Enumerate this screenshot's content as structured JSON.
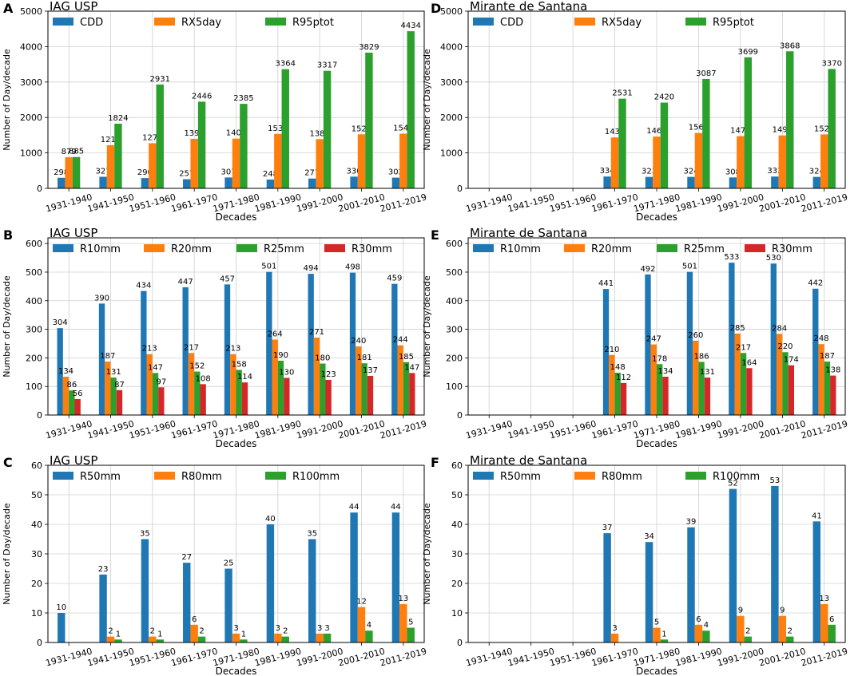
{
  "chart_data": [
    {
      "panel": "A",
      "title": "IAG USP",
      "type": "bar",
      "xlabel": "Decades",
      "ylabel": "Number of Day/decade",
      "ylim": [
        0,
        5000
      ],
      "yticks": [
        0,
        1000,
        2000,
        3000,
        4000,
        5000
      ],
      "categories": [
        "1931-1940",
        "1941-1950",
        "1951-1960",
        "1961-1970",
        "1971-1980",
        "1981-1990",
        "1991-2000",
        "2001-2010",
        "2011-2019"
      ],
      "series": [
        {
          "name": "CDD",
          "color": "#1f77b4",
          "values": [
            298,
            327,
            290,
            257,
            307,
            248,
            277,
            330,
            302
          ]
        },
        {
          "name": "RX5day",
          "color": "#ff7f0e",
          "values": [
            879,
            1218,
            1274,
            1398,
            1404,
            1536,
            1389,
            1525,
            1543
          ]
        },
        {
          "name": "R95ptot",
          "color": "#2ca02c",
          "values": [
            885,
            1824,
            2931,
            2446,
            2385,
            3364,
            3317,
            3829,
            4434
          ]
        }
      ]
    },
    {
      "panel": "D",
      "title": "Mirante de Santana",
      "type": "bar",
      "xlabel": "Decades",
      "ylabel": "Number of Day/decade",
      "ylim": [
        0,
        5000
      ],
      "yticks": [
        0,
        1000,
        2000,
        3000,
        4000,
        5000
      ],
      "categories": [
        "1931-1940",
        "1941-1950",
        "1951-1960",
        "1961-1970",
        "1971-1980",
        "1981-1990",
        "1991-2000",
        "2001-2010",
        "2011-2019"
      ],
      "series": [
        {
          "name": "CDD",
          "color": "#1f77b4",
          "values": [
            null,
            null,
            null,
            334,
            323,
            324,
            308,
            333,
            324
          ]
        },
        {
          "name": "RX5day",
          "color": "#ff7f0e",
          "values": [
            null,
            null,
            null,
            1437,
            1460,
            1563,
            1473,
            1494,
            1523
          ]
        },
        {
          "name": "R95ptot",
          "color": "#2ca02c",
          "values": [
            null,
            null,
            null,
            2531,
            2420,
            3087,
            3699,
            3868,
            3370
          ]
        }
      ]
    },
    {
      "panel": "B",
      "title": "IAG USP",
      "type": "bar",
      "xlabel": "Decades",
      "ylabel": "Number of Day/decade",
      "ylim": [
        0,
        620
      ],
      "yticks": [
        0,
        100,
        200,
        300,
        400,
        500,
        600
      ],
      "categories": [
        "1931-1940",
        "1941-1950",
        "1951-1960",
        "1961-1970",
        "1971-1980",
        "1981-1990",
        "1991-2000",
        "2001-2010",
        "2011-2019"
      ],
      "series": [
        {
          "name": "R10mm",
          "color": "#1f77b4",
          "values": [
            304,
            390,
            434,
            447,
            457,
            501,
            494,
            498,
            459
          ]
        },
        {
          "name": "R20mm",
          "color": "#ff7f0e",
          "values": [
            134,
            187,
            213,
            217,
            213,
            264,
            271,
            240,
            244
          ]
        },
        {
          "name": "R25mm",
          "color": "#2ca02c",
          "values": [
            86,
            131,
            147,
            152,
            158,
            190,
            180,
            181,
            185
          ]
        },
        {
          "name": "R30mm",
          "color": "#d62728",
          "values": [
            56,
            87,
            97,
            108,
            114,
            130,
            123,
            137,
            147
          ]
        }
      ]
    },
    {
      "panel": "E",
      "title": "Mirante de Santana",
      "type": "bar",
      "xlabel": "Decades",
      "ylabel": "Number of Day/decade",
      "ylim": [
        0,
        620
      ],
      "yticks": [
        0,
        100,
        200,
        300,
        400,
        500,
        600
      ],
      "categories": [
        "1931-1940",
        "1941-1950",
        "1951-1960",
        "1961-1970",
        "1971-1980",
        "1981-1990",
        "1991-2000",
        "2001-2010",
        "2011-2019"
      ],
      "series": [
        {
          "name": "R10mm",
          "color": "#1f77b4",
          "values": [
            null,
            null,
            null,
            441,
            492,
            501,
            533,
            530,
            442
          ]
        },
        {
          "name": "R20mm",
          "color": "#ff7f0e",
          "values": [
            null,
            null,
            null,
            210,
            247,
            260,
            285,
            284,
            248
          ]
        },
        {
          "name": "R25mm",
          "color": "#2ca02c",
          "values": [
            null,
            null,
            null,
            148,
            178,
            186,
            217,
            220,
            187
          ]
        },
        {
          "name": "R30mm",
          "color": "#d62728",
          "values": [
            null,
            null,
            null,
            112,
            134,
            131,
            164,
            174,
            138
          ]
        }
      ]
    },
    {
      "panel": "C",
      "title": "IAG USP",
      "type": "bar",
      "xlabel": "Decades",
      "ylabel": "Number of Day/decade",
      "ylim": [
        0,
        60
      ],
      "yticks": [
        0,
        10,
        20,
        30,
        40,
        50,
        60
      ],
      "categories": [
        "1931-1940",
        "1941-1950",
        "1951-1960",
        "1961-1970",
        "1971-1980",
        "1981-1990",
        "1991-2000",
        "2001-2010",
        "2011-2019"
      ],
      "series": [
        {
          "name": "R50mm",
          "color": "#1f77b4",
          "values": [
            10,
            23,
            35,
            27,
            25,
            40,
            35,
            44,
            44
          ]
        },
        {
          "name": "R80mm",
          "color": "#ff7f0e",
          "values": [
            null,
            2,
            2,
            6,
            3,
            3,
            3,
            12,
            13
          ]
        },
        {
          "name": "R100mm",
          "color": "#2ca02c",
          "values": [
            null,
            1,
            1,
            2,
            1,
            2,
            3,
            4,
            5
          ]
        }
      ]
    },
    {
      "panel": "F",
      "title": "Mirante de Santana",
      "type": "bar",
      "xlabel": "Decades",
      "ylabel": "Number of Day/decade",
      "ylim": [
        0,
        60
      ],
      "yticks": [
        0,
        10,
        20,
        30,
        40,
        50,
        60
      ],
      "categories": [
        "1931-1940",
        "1941-1950",
        "1951-1960",
        "1961-1970",
        "1971-1980",
        "1981-1990",
        "1991-2000",
        "2001-2010",
        "2011-2019"
      ],
      "series": [
        {
          "name": "R50mm",
          "color": "#1f77b4",
          "values": [
            null,
            null,
            null,
            37,
            34,
            39,
            52,
            53,
            41
          ]
        },
        {
          "name": "R80mm",
          "color": "#ff7f0e",
          "values": [
            null,
            null,
            null,
            3,
            5,
            6,
            9,
            9,
            13
          ]
        },
        {
          "name": "R100mm",
          "color": "#2ca02c",
          "values": [
            null,
            null,
            null,
            null,
            1,
            4,
            2,
            2,
            6
          ]
        }
      ]
    }
  ]
}
